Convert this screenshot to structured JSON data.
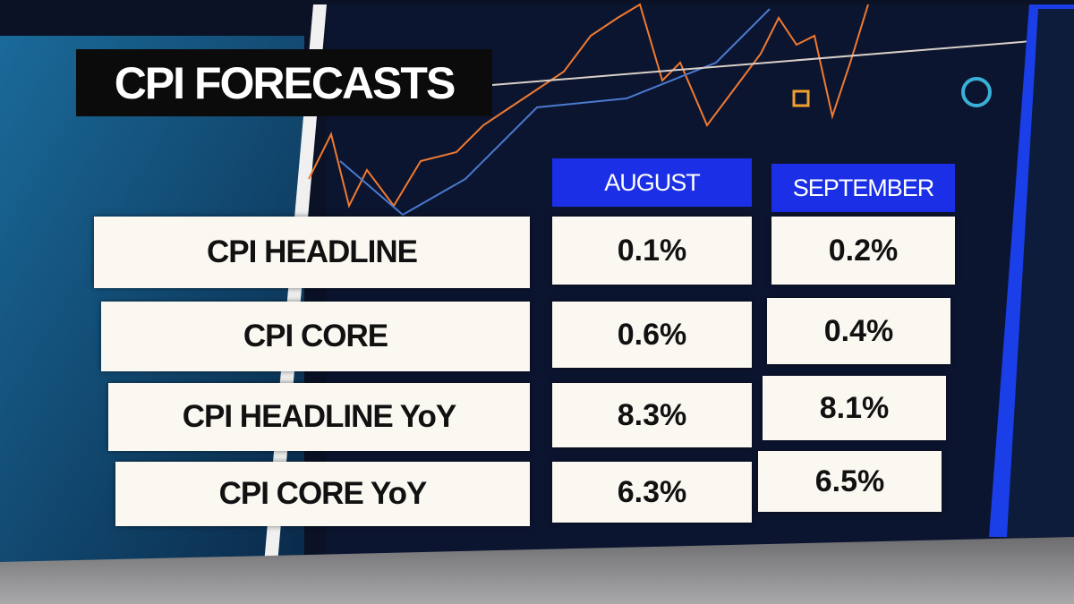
{
  "title": "CPI FORECASTS",
  "table": {
    "columns": [
      "AUGUST",
      "SEPTEMBER"
    ],
    "rows": [
      {
        "label": "CPI HEADLINE",
        "values": [
          "0.1%",
          "0.2%"
        ]
      },
      {
        "label": "CPI CORE",
        "values": [
          "0.6%",
          "0.4%"
        ]
      },
      {
        "label": "CPI HEADLINE YoY",
        "values": [
          "8.3%",
          "8.1%"
        ]
      },
      {
        "label": "CPI CORE YoY",
        "values": [
          "6.3%",
          "6.5%"
        ]
      }
    ]
  }
}
